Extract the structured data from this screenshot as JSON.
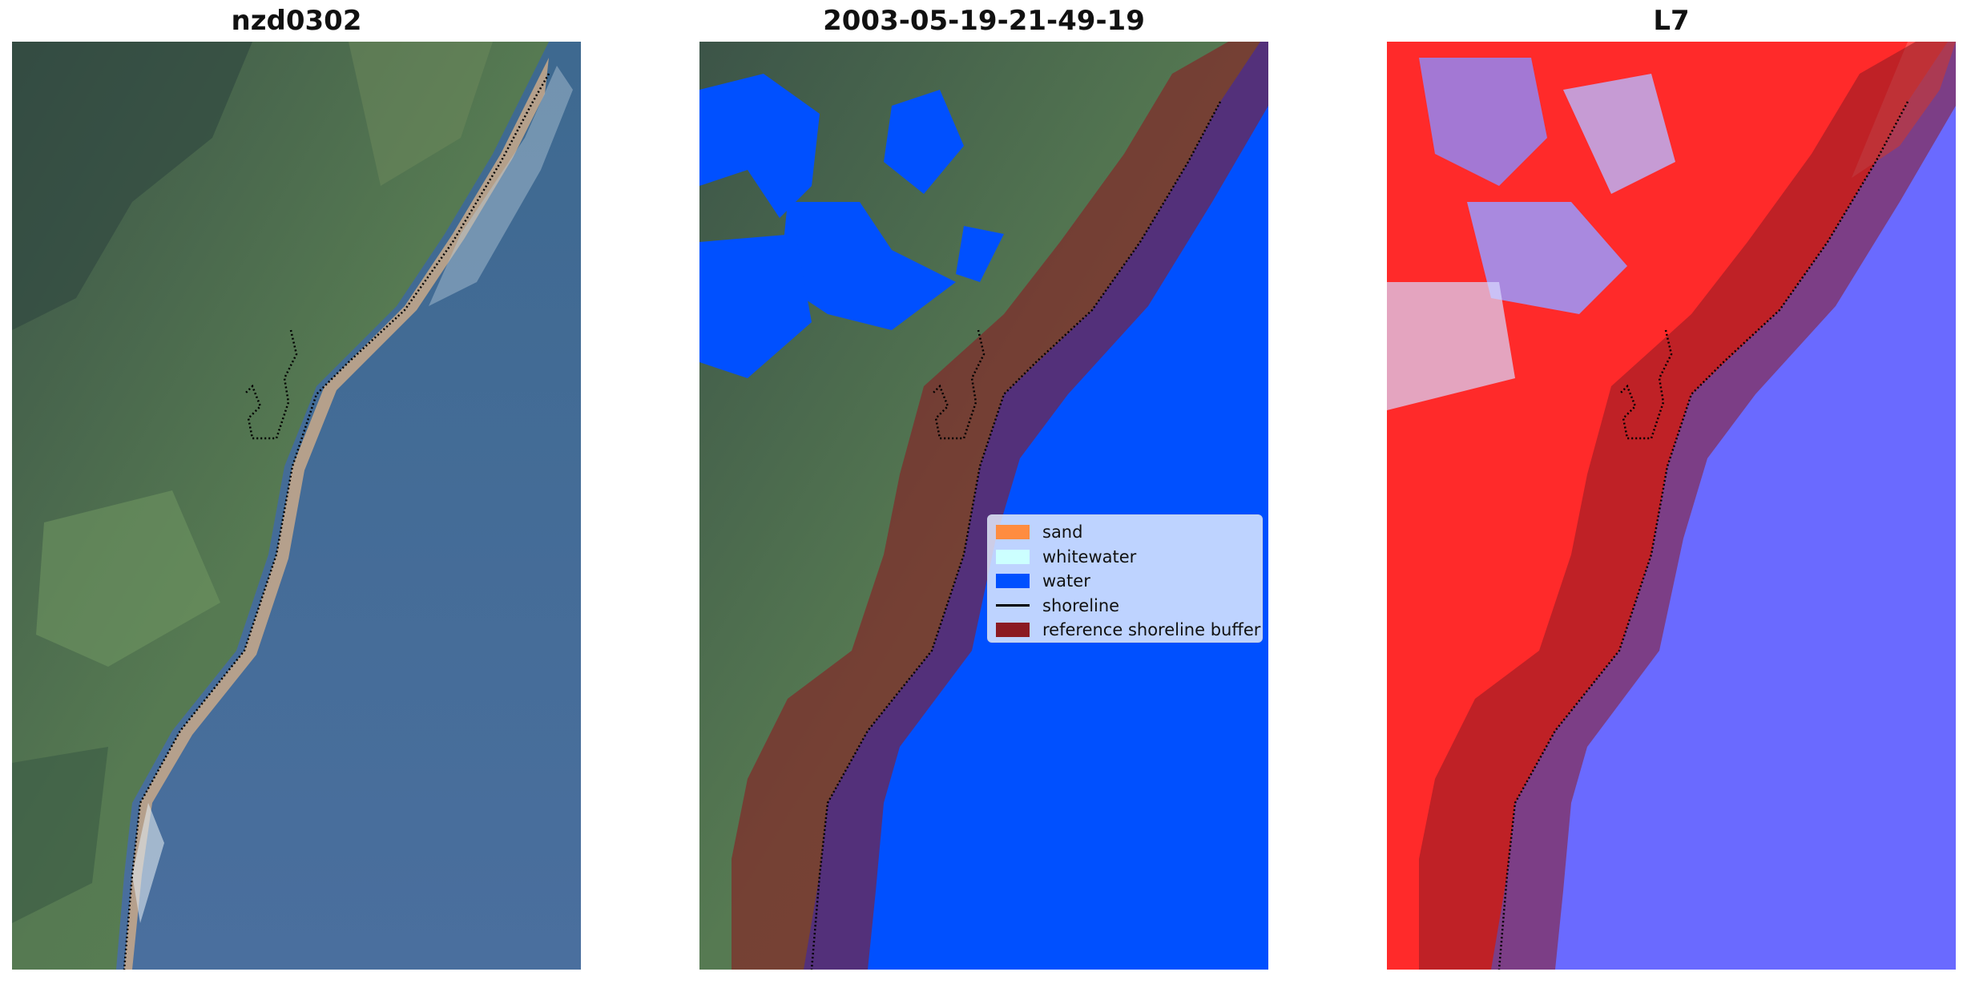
{
  "panels": [
    {
      "title": "nzd0302"
    },
    {
      "title": "2003-05-19-21-49-19"
    },
    {
      "title": "L7"
    }
  ],
  "legend": {
    "items": [
      {
        "label": "sand",
        "color": "#ff8c40",
        "kind": "patch"
      },
      {
        "label": "whitewater",
        "color": "#ccffff",
        "kind": "patch"
      },
      {
        "label": "water",
        "color": "#0050ff",
        "kind": "patch"
      },
      {
        "label": "shoreline",
        "color": "#000000",
        "kind": "line"
      },
      {
        "label": "reference shoreline buffer",
        "color": "#8b1a22",
        "kind": "patch"
      }
    ]
  },
  "colors": {
    "land": "#4d6a4a",
    "sea": "#4a6c96",
    "beach": "#c9a98a",
    "water_class": "#0050ff",
    "buffer": "#8b1a22",
    "index_high": "#ff1a1a",
    "index_low": "#6a6aff"
  }
}
